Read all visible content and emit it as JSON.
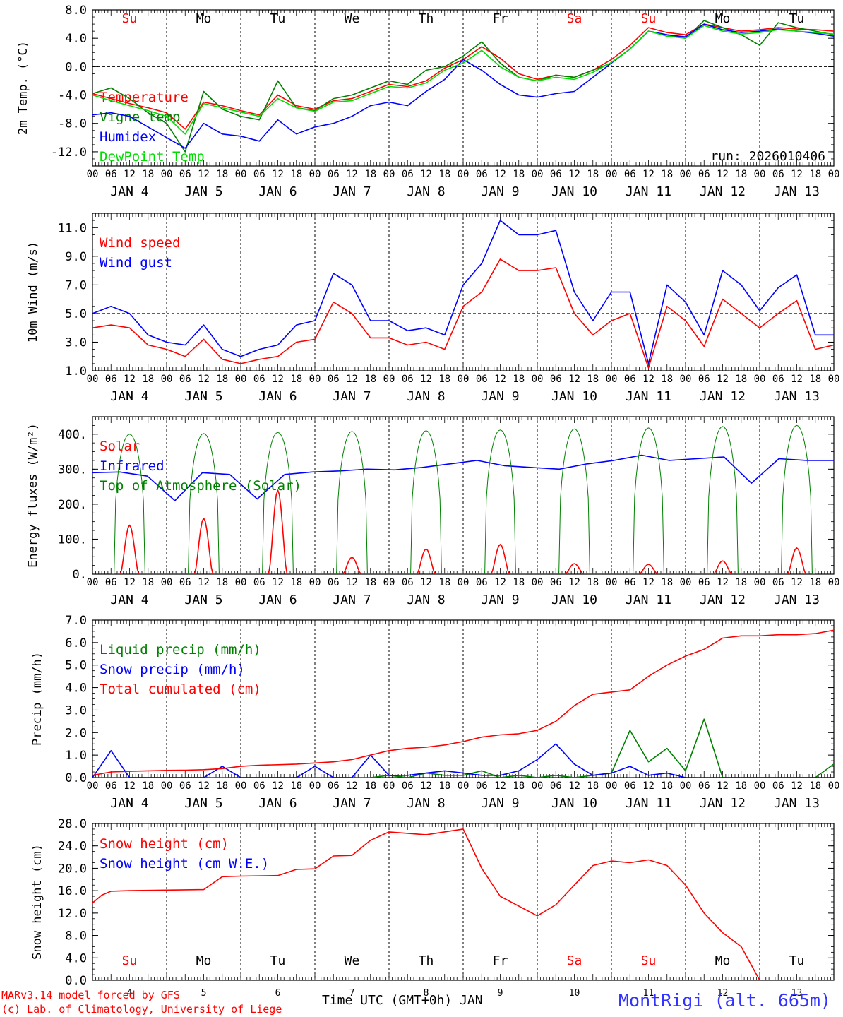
{
  "run_label": "run: 2026010406",
  "footer": {
    "credit_line1": "MARv3.14 model forced by GFS",
    "credit_line2": "(c) Lab. of Climatology, University of Liege",
    "xlabel": "Time UTC (GMT+0h) JAN",
    "station": "MontRigi (alt. 665m)"
  },
  "colors": {
    "red": "#ff0000",
    "blue": "#0000ff",
    "green": "#008000",
    "lime": "#00dd00",
    "weekend": "#ff0000",
    "weekday": "#000000"
  },
  "days": {
    "weekday_labels": [
      "Su",
      "Mo",
      "Tu",
      "We",
      "Th",
      "Fr",
      "Sa",
      "Su",
      "Mo",
      "Tu"
    ],
    "weekend_flags": [
      true,
      false,
      false,
      false,
      false,
      false,
      true,
      true,
      false,
      false
    ],
    "date_labels": [
      "JAN  4",
      "JAN  5",
      "JAN  6",
      "JAN  7",
      "JAN  8",
      "JAN  9",
      "JAN 10",
      "JAN 11",
      "JAN 12",
      "JAN 13"
    ],
    "day_numbers": [
      "4",
      "5",
      "6",
      "7",
      "8",
      "9",
      "10",
      "11",
      "12",
      "13"
    ],
    "hour_ticks": [
      "00",
      "06",
      "12",
      "18"
    ],
    "final_hour": "00"
  },
  "chart_data": [
    {
      "type": "line",
      "id": "temp",
      "ylabel": "2m Temp. (°C)",
      "ylim": [
        -14,
        8
      ],
      "yticks": [
        "8.0",
        "4.0",
        "0.0",
        "-4.0",
        "-8.0",
        "-12.0"
      ],
      "ytick_values": [
        8,
        4,
        0,
        -4,
        -8,
        -12
      ],
      "dashed_ref": 0,
      "x_hours": [
        0,
        6,
        12,
        18,
        24,
        30,
        36,
        42,
        48,
        54,
        60,
        66,
        72,
        78,
        84,
        90,
        96,
        102,
        108,
        114,
        120,
        126,
        132,
        138,
        144,
        150,
        156,
        162,
        168,
        174,
        180,
        186,
        192,
        198,
        204,
        210,
        216,
        222,
        228,
        234,
        240
      ],
      "series": [
        {
          "name": "Temperature",
          "color": "red",
          "values": [
            -3.8,
            -4.5,
            -5.2,
            -5.8,
            -6.5,
            -8.8,
            -5.0,
            -5.5,
            -6.2,
            -6.8,
            -4.0,
            -5.5,
            -6.0,
            -4.8,
            -4.5,
            -3.5,
            -2.5,
            -2.8,
            -2.0,
            -0.2,
            1.0,
            2.8,
            1.2,
            -1.0,
            -1.8,
            -1.2,
            -1.5,
            -0.5,
            1.0,
            3.0,
            5.5,
            4.8,
            4.5,
            6.0,
            5.5,
            5.0,
            5.2,
            5.5,
            5.3,
            5.2,
            5.0
          ]
        },
        {
          "name": "Vigne temp",
          "color": "green",
          "values": [
            -3.8,
            -3.0,
            -4.5,
            -6.5,
            -8.0,
            -12.0,
            -3.5,
            -6.0,
            -7.0,
            -7.5,
            -2.0,
            -5.8,
            -6.2,
            -4.5,
            -4.0,
            -3.0,
            -2.0,
            -2.5,
            -0.5,
            0.0,
            1.5,
            3.5,
            0.5,
            -1.5,
            -2.0,
            -1.2,
            -1.5,
            -0.5,
            0.5,
            2.5,
            5.0,
            4.5,
            4.0,
            6.5,
            5.5,
            4.5,
            3.0,
            6.2,
            5.5,
            5.0,
            4.5
          ]
        },
        {
          "name": "Humidex",
          "color": "blue",
          "values": [
            -6.8,
            -6.5,
            -7.0,
            -8.5,
            -10.0,
            -11.5,
            -8.0,
            -9.5,
            -9.8,
            -10.5,
            -7.5,
            -9.5,
            -8.5,
            -8.0,
            -7.0,
            -5.5,
            -5.0,
            -5.5,
            -3.5,
            -1.8,
            1.0,
            -0.5,
            -2.5,
            -4.0,
            -4.3,
            -3.8,
            -3.5,
            -1.5,
            0.5,
            2.5,
            5.0,
            4.5,
            4.2,
            6.0,
            5.2,
            4.8,
            5.0,
            5.3,
            5.0,
            4.7,
            4.3
          ]
        },
        {
          "name": "DewPoint Temp",
          "color": "lime",
          "values": [
            -4.0,
            -4.8,
            -5.5,
            -6.2,
            -7.0,
            -9.5,
            -5.2,
            -5.8,
            -6.4,
            -7.0,
            -4.5,
            -5.8,
            -6.3,
            -5.0,
            -4.8,
            -3.8,
            -2.8,
            -3.0,
            -2.3,
            -0.5,
            0.5,
            2.3,
            0.0,
            -1.5,
            -2.0,
            -1.5,
            -1.8,
            -0.8,
            0.6,
            2.5,
            5.0,
            4.3,
            4.0,
            5.8,
            5.0,
            4.6,
            4.8,
            5.2,
            5.0,
            4.8,
            4.6
          ]
        }
      ]
    },
    {
      "type": "line",
      "id": "wind",
      "ylabel": "10m Wind (m/s)",
      "ylim": [
        1.0,
        12.0
      ],
      "yticks": [
        "11.0",
        "9.0",
        "7.0",
        "5.0",
        "3.0",
        "1.0"
      ],
      "ytick_values": [
        11,
        9,
        7,
        5,
        3,
        1
      ],
      "dashed_ref": 5,
      "x_hours": [
        0,
        6,
        12,
        18,
        24,
        30,
        36,
        42,
        48,
        54,
        60,
        66,
        72,
        78,
        84,
        90,
        96,
        102,
        108,
        114,
        120,
        126,
        132,
        138,
        144,
        150,
        156,
        162,
        168,
        174,
        180,
        186,
        192,
        198,
        204,
        210,
        216,
        222,
        228,
        234,
        240
      ],
      "series": [
        {
          "name": "Wind speed",
          "color": "red",
          "values": [
            4.0,
            4.2,
            4.0,
            2.8,
            2.5,
            2.0,
            3.2,
            1.8,
            1.5,
            1.8,
            2.0,
            3.0,
            3.2,
            5.8,
            5.0,
            3.3,
            3.3,
            2.8,
            3.0,
            2.5,
            5.5,
            6.5,
            8.8,
            8.0,
            8.0,
            8.2,
            5.0,
            3.5,
            4.5,
            5.0,
            1.2,
            5.5,
            4.5,
            2.7,
            6.0,
            5.0,
            4.0,
            5.0,
            5.9,
            2.5,
            2.8
          ]
        },
        {
          "name": "Wind gust",
          "color": "blue",
          "values": [
            5.0,
            5.5,
            5.0,
            3.5,
            3.0,
            2.8,
            4.2,
            2.5,
            2.0,
            2.5,
            2.8,
            4.2,
            4.5,
            7.8,
            7.0,
            4.5,
            4.5,
            3.8,
            4.0,
            3.5,
            7.0,
            8.5,
            11.5,
            10.5,
            10.5,
            10.8,
            6.5,
            4.5,
            6.5,
            6.5,
            1.5,
            7.0,
            5.8,
            3.5,
            8.0,
            7.0,
            5.2,
            6.8,
            7.7,
            3.5,
            3.5
          ]
        }
      ]
    },
    {
      "type": "line",
      "id": "energy",
      "ylabel": "Energy fluxes (W/m²)",
      "ylim": [
        0,
        450
      ],
      "yticks": [
        "400.",
        "300.",
        "200.",
        "100.",
        "0."
      ],
      "ytick_values": [
        400,
        300,
        200,
        100,
        0
      ],
      "series": [
        {
          "name": "Solar",
          "color": "red",
          "peaks": [
            140,
            160,
            240,
            48,
            72,
            85,
            30,
            28,
            38,
            75
          ]
        },
        {
          "name": "Infrared",
          "color": "blue",
          "values": [
            290,
            292,
            280,
            210,
            290,
            285,
            215,
            285,
            292,
            295,
            300,
            298,
            305,
            315,
            325,
            310,
            305,
            300,
            315,
            325,
            340,
            325,
            330,
            335,
            260,
            330,
            325,
            325
          ]
        },
        {
          "name": "Top of Atmosphere (Solar)",
          "color": "green",
          "peaks": [
            400,
            402,
            405,
            408,
            410,
            412,
            415,
            418,
            422,
            425
          ]
        }
      ]
    },
    {
      "type": "line",
      "id": "precip",
      "ylabel": "Precip (mm/h)",
      "ylim": [
        0,
        7.0
      ],
      "yticks": [
        "7.0",
        "6.0",
        "5.0",
        "4.0",
        "3.0",
        "2.0",
        "1.0",
        "0.0"
      ],
      "ytick_values": [
        7,
        6,
        5,
        4,
        3,
        2,
        1,
        0
      ],
      "x_hours": [
        0,
        6,
        12,
        18,
        24,
        30,
        36,
        42,
        48,
        54,
        60,
        66,
        72,
        78,
        84,
        90,
        96,
        102,
        108,
        114,
        120,
        126,
        132,
        138,
        144,
        150,
        156,
        162,
        168,
        174,
        180,
        186,
        192,
        198,
        204,
        210,
        216,
        222,
        228,
        234,
        240
      ],
      "series": [
        {
          "name": "Liquid precip (mm/h)",
          "color": "green",
          "values": [
            0,
            0,
            0,
            0,
            0,
            0,
            0,
            0,
            0,
            0,
            0,
            0,
            0,
            0,
            0,
            0,
            0.1,
            0,
            0.2,
            0.1,
            0.1,
            0.3,
            0,
            0.1,
            0,
            0.1,
            0,
            0.1,
            0.2,
            2.1,
            0.7,
            1.3,
            0.3,
            2.6,
            0,
            0,
            0,
            0,
            0,
            0,
            0.6
          ]
        },
        {
          "name": "Snow precip (mm/h)",
          "color": "blue",
          "values": [
            0,
            1.2,
            0,
            0,
            0,
            0,
            0,
            0.5,
            0,
            0,
            0,
            0,
            0.5,
            0,
            0,
            1.0,
            0.1,
            0.1,
            0.2,
            0.3,
            0.2,
            0.1,
            0.1,
            0.3,
            0.8,
            1.5,
            0.6,
            0.1,
            0.2,
            0.5,
            0.1,
            0.2,
            0,
            0,
            0,
            0,
            0,
            0,
            0,
            0,
            0
          ]
        },
        {
          "name": "Total cumulated (cm)",
          "color": "red",
          "values": [
            0.1,
            0.25,
            0.28,
            0.3,
            0.32,
            0.33,
            0.35,
            0.4,
            0.5,
            0.55,
            0.57,
            0.6,
            0.65,
            0.7,
            0.8,
            1.0,
            1.2,
            1.3,
            1.35,
            1.45,
            1.6,
            1.8,
            1.9,
            1.95,
            2.1,
            2.5,
            3.2,
            3.7,
            3.8,
            3.9,
            4.5,
            5.0,
            5.4,
            5.7,
            6.2,
            6.3,
            6.3,
            6.35,
            6.35,
            6.4,
            6.55
          ]
        }
      ]
    },
    {
      "type": "line",
      "id": "snow",
      "ylabel": "Snow height (cm)",
      "ylim": [
        0,
        28.0
      ],
      "yticks": [
        "28.0",
        "24.0",
        "20.0",
        "16.0",
        "12.0",
        "8.0",
        "4.0",
        "0.0"
      ],
      "ytick_values": [
        28,
        24,
        20,
        16,
        12,
        8,
        4,
        0
      ],
      "x_hours": [
        0,
        3,
        6,
        12,
        24,
        36,
        42,
        48,
        60,
        66,
        72,
        78,
        84,
        90,
        96,
        108,
        120,
        126,
        132,
        144,
        150,
        156,
        162,
        168,
        174,
        180,
        186,
        192,
        198,
        204,
        210,
        216,
        228,
        240
      ],
      "series": [
        {
          "name": "Snow height (cm)",
          "color": "red",
          "values": [
            13.8,
            15.2,
            15.9,
            16.0,
            16.1,
            16.2,
            18.5,
            18.6,
            18.7,
            19.8,
            19.9,
            22.2,
            22.3,
            25.0,
            26.5,
            26.0,
            27.0,
            20.0,
            15.0,
            11.5,
            13.5,
            17.0,
            20.5,
            21.3,
            21.0,
            21.5,
            20.5,
            17.0,
            12.0,
            8.5,
            6.0,
            0,
            0,
            0
          ]
        },
        {
          "name": "Snow height (cm W.E.)",
          "color": "blue",
          "values": []
        }
      ]
    }
  ]
}
